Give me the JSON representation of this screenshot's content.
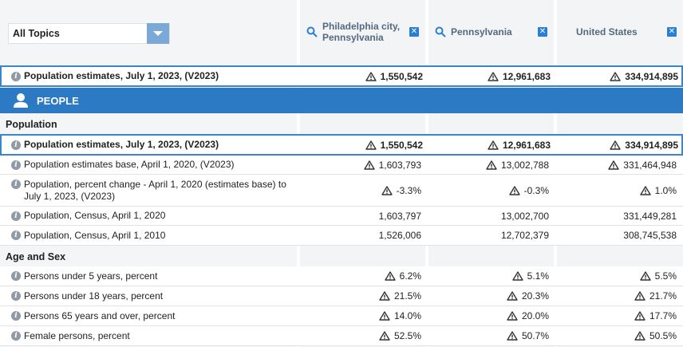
{
  "topics": {
    "selected": "All Topics"
  },
  "geographies": [
    {
      "name": "Philadelphia city, Pennsylvania",
      "close": "✕"
    },
    {
      "name": "Pennsylvania",
      "close": "✕"
    },
    {
      "name": "United States",
      "close": "✕"
    }
  ],
  "pinned_row": {
    "label": "Population estimates, July 1, 2023, (V2023)",
    "values": [
      "1,550,542",
      "12,961,683",
      "334,914,895"
    ]
  },
  "section": {
    "title": "PEOPLE"
  },
  "groups": {
    "population": "Population",
    "age_sex": "Age and Sex"
  },
  "population_rows": [
    {
      "label": "Population estimates, July 1, 2023, (V2023)",
      "values": [
        "1,550,542",
        "12,961,683",
        "334,914,895"
      ]
    },
    {
      "label": "Population estimates base, April 1, 2020, (V2023)",
      "values": [
        "1,603,793",
        "13,002,788",
        "331,464,948"
      ]
    },
    {
      "label": "Population, percent change - April 1, 2020 (estimates base) to July 1, 2023, (V2023)",
      "values": [
        "-3.3%",
        "-0.3%",
        "1.0%"
      ]
    },
    {
      "label": "Population, Census, April 1, 2020",
      "values": [
        "1,603,797",
        "13,002,700",
        "331,449,281"
      ]
    },
    {
      "label": "Population, Census, April 1, 2010",
      "values": [
        "1,526,006",
        "12,702,379",
        "308,745,538"
      ]
    }
  ],
  "age_rows": [
    {
      "label": "Persons under 5 years, percent",
      "values": [
        "6.2%",
        "5.1%",
        "5.5%"
      ]
    },
    {
      "label": "Persons under 18 years, percent",
      "values": [
        "21.5%",
        "20.3%",
        "21.7%"
      ]
    },
    {
      "label": "Persons 65 years and over, percent",
      "values": [
        "14.0%",
        "20.0%",
        "17.7%"
      ]
    },
    {
      "label": "Female persons, percent",
      "values": [
        "52.5%",
        "50.7%",
        "50.5%"
      ]
    }
  ],
  "colors": {
    "accent": "#2c7ac4",
    "highlight_border": "#3a86cc",
    "header_text": "#526a80"
  }
}
